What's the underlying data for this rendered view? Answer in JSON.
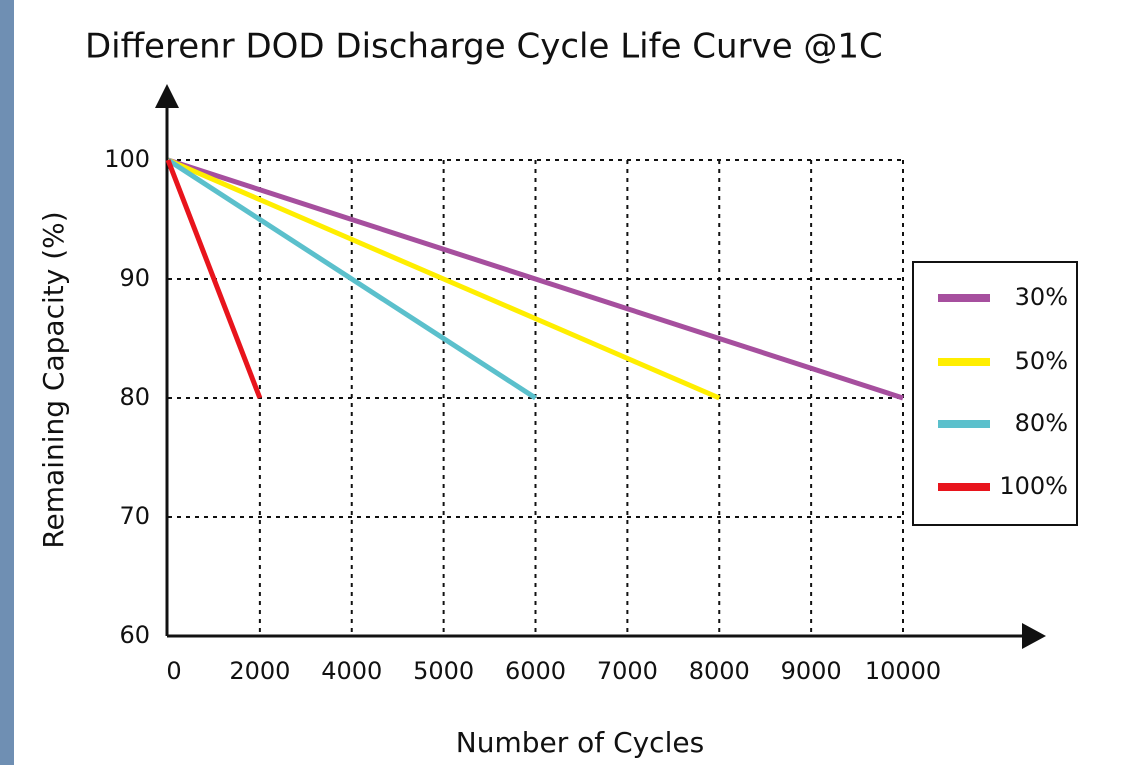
{
  "chart_data": {
    "type": "line",
    "title": "Differenr DOD Discharge Cycle Life Curve @1C",
    "x_label": "Number of Cycles",
    "y_label": "Remaining Capacity (%)",
    "categories": [
      "0",
      "2000",
      "4000",
      "5000",
      "6000",
      "7000",
      "8000",
      "9000",
      "10000"
    ],
    "series": [
      {
        "name": "30%",
        "color": "#a64f9e",
        "values": [
          100,
          97.5,
          95,
          92.5,
          90,
          87.5,
          85,
          82.5,
          80
        ]
      },
      {
        "name": "50%",
        "color": "#ffee00",
        "values": [
          100,
          96.67,
          93.33,
          90,
          86.67,
          83.33,
          80,
          null,
          null
        ]
      },
      {
        "name": "80%",
        "color": "#5bc0cc",
        "values": [
          100,
          95,
          90,
          85,
          80,
          null,
          null,
          null,
          null
        ]
      },
      {
        "name": "100%",
        "color": "#e8141c",
        "values": [
          100,
          80,
          null,
          null,
          null,
          null,
          null,
          null,
          null
        ]
      }
    ],
    "ylim": [
      60,
      100
    ],
    "yticks": [
      60,
      70,
      80,
      90,
      100
    ],
    "grid": true,
    "legend": "right"
  }
}
